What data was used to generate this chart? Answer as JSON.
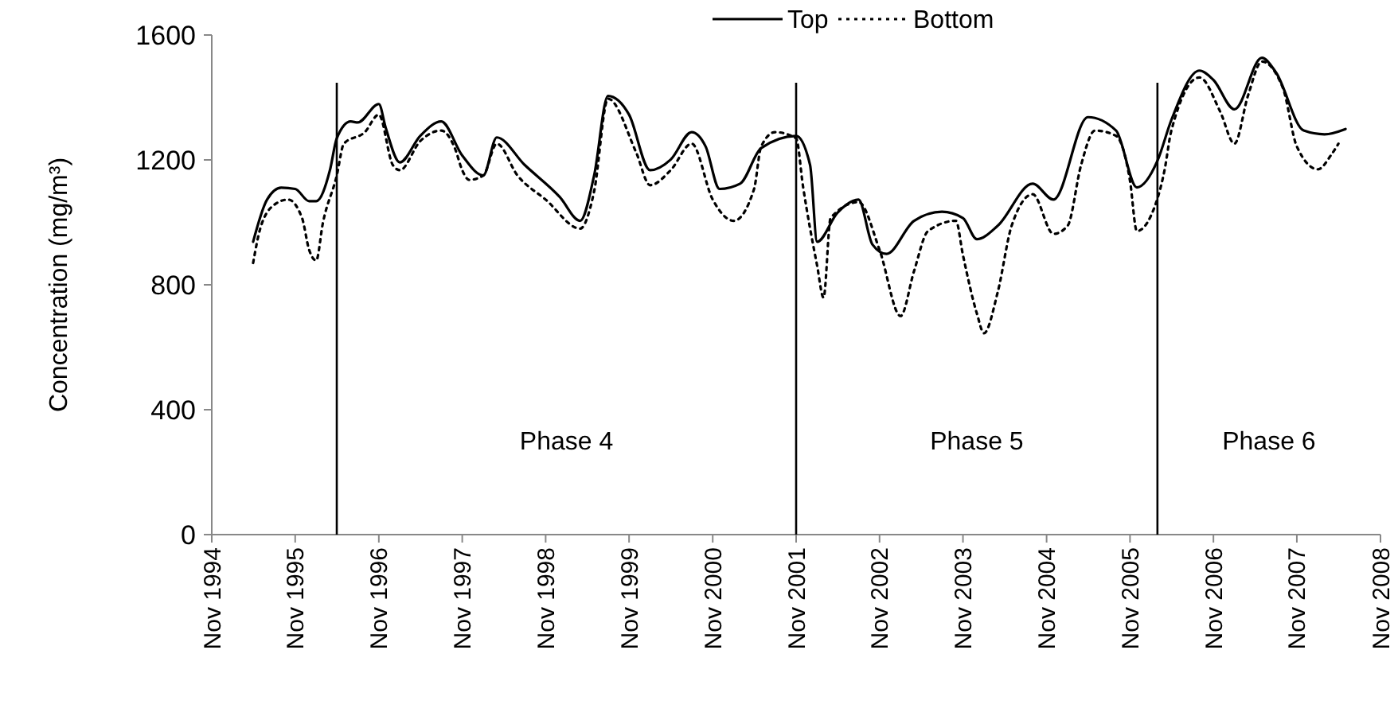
{
  "chart_data": {
    "type": "line",
    "ylabel": "Concentration (mg/m³)",
    "legend": "top",
    "xlim": [
      "1994-11",
      "2008-11"
    ],
    "xticks": [
      {
        "value": "1994-11",
        "label": "Nov 1994"
      },
      {
        "value": "1995-11",
        "label": "Nov 1995"
      },
      {
        "value": "1996-11",
        "label": "Nov 1996"
      },
      {
        "value": "1997-11",
        "label": "Nov 1997"
      },
      {
        "value": "1998-11",
        "label": "Nov 1998"
      },
      {
        "value": "1999-11",
        "label": "Nov 1999"
      },
      {
        "value": "2000-11",
        "label": "Nov 2000"
      },
      {
        "value": "2001-11",
        "label": "Nov 2001"
      },
      {
        "value": "2002-11",
        "label": "Nov 2002"
      },
      {
        "value": "2003-11",
        "label": "Nov 2003"
      },
      {
        "value": "2004-11",
        "label": "Nov 2004"
      },
      {
        "value": "2005-11",
        "label": "Nov 2005"
      },
      {
        "value": "2006-11",
        "label": "Nov 2006"
      },
      {
        "value": "2007-11",
        "label": "Nov 2007"
      },
      {
        "value": "2008-11",
        "label": "Nov 2008"
      }
    ],
    "ylim": [
      0,
      1600
    ],
    "yticks": [
      0,
      400,
      800,
      1200,
      1600
    ],
    "series": [
      {
        "name": "Top",
        "color": "#000000",
        "line_style": "solid",
        "x": [
          "1995-05",
          "1995-07",
          "1995-09",
          "1995-11",
          "1996-01",
          "1996-02",
          "1996-04",
          "1996-05",
          "1996-07",
          "1996-08",
          "1996-11",
          "1996-12",
          "1997-02",
          "1997-05",
          "1997-08",
          "1997-11",
          "1998-02",
          "1998-04",
          "1998-08",
          "1999-01",
          "1999-04",
          "1999-06",
          "1999-08",
          "1999-11",
          "2000-02",
          "2000-05",
          "2000-08",
          "2000-10",
          "2000-12",
          "2001-03",
          "2001-06",
          "2001-11",
          "2002-01",
          "2002-02",
          "2002-05",
          "2002-08",
          "2002-10",
          "2002-12",
          "2003-04",
          "2003-08",
          "2003-11",
          "2004-01",
          "2004-04",
          "2004-09",
          "2004-12",
          "2005-05",
          "2005-09",
          "2005-12",
          "2006-03",
          "2006-05",
          "2006-09",
          "2006-11",
          "2007-02",
          "2007-06",
          "2007-08",
          "2007-12",
          "2008-03",
          "2008-06"
        ],
        "values": [
          938,
          1073,
          1111,
          1107,
          1068,
          1068,
          1167,
          1269,
          1323,
          1320,
          1379,
          1303,
          1192,
          1277,
          1323,
          1214,
          1150,
          1272,
          1184,
          1082,
          1005,
          1150,
          1405,
          1345,
          1167,
          1201,
          1289,
          1243,
          1107,
          1124,
          1238,
          1277,
          1184,
          938,
          1031,
          1073,
          929,
          899,
          1005,
          1034,
          1014,
          946,
          989,
          1124,
          1073,
          1337,
          1294,
          1112,
          1197,
          1328,
          1486,
          1456,
          1362,
          1527,
          1481,
          1294,
          1282,
          1299
        ]
      },
      {
        "name": "Bottom",
        "color": "#000000",
        "line_style": "dotted",
        "x": [
          "1995-05",
          "1995-06",
          "1995-08",
          "1995-10",
          "1995-12",
          "1996-01",
          "1996-02",
          "1996-03",
          "1996-05",
          "1996-06",
          "1996-09",
          "1996-11",
          "1997-01",
          "1997-02",
          "1997-05",
          "1997-08",
          "1997-10",
          "1997-11",
          "1997-12",
          "1998-02",
          "1998-04",
          "1998-07",
          "1998-11",
          "1999-04",
          "1999-06",
          "1999-08",
          "1999-12",
          "2000-02",
          "2000-05",
          "2000-08",
          "2000-11",
          "2001-02",
          "2001-05",
          "2001-06",
          "2001-08",
          "2001-11",
          "2001-12",
          "2002-02",
          "2002-03",
          "2002-04",
          "2002-08",
          "2002-11",
          "2003-02",
          "2003-04",
          "2003-06",
          "2003-10",
          "2003-11",
          "2004-01",
          "2004-02",
          "2004-04",
          "2004-06",
          "2004-09",
          "2004-12",
          "2005-02",
          "2005-04",
          "2005-06",
          "2005-09",
          "2005-11",
          "2005-12",
          "2006-02",
          "2006-04",
          "2006-05",
          "2006-09",
          "2006-12",
          "2007-02",
          "2007-04",
          "2007-06",
          "2007-09",
          "2007-11",
          "2008-02",
          "2008-04",
          "2008-05"
        ],
        "values": [
          870,
          980,
          1056,
          1073,
          1014,
          912,
          878,
          997,
          1150,
          1252,
          1289,
          1345,
          1184,
          1167,
          1260,
          1294,
          1235,
          1167,
          1136,
          1150,
          1252,
          1150,
          1073,
          980,
          1099,
          1396,
          1226,
          1119,
          1167,
          1252,
          1073,
          1005,
          1107,
          1243,
          1289,
          1269,
          1116,
          861,
          759,
          1014,
          1065,
          912,
          700,
          844,
          972,
          1005,
          895,
          708,
          645,
          776,
          989,
          1090,
          963,
          989,
          1184,
          1294,
          1277,
          1133,
          972,
          1022,
          1167,
          1294,
          1464,
          1354,
          1252,
          1405,
          1515,
          1430,
          1243,
          1170,
          1218,
          1252
        ]
      }
    ],
    "ref_lines": [
      {
        "axis": "x",
        "value": "1996-05",
        "color": "#000000"
      },
      {
        "axis": "x",
        "value": "2001-11",
        "color": "#000000"
      },
      {
        "axis": "x",
        "value": "2006-03",
        "color": "#000000"
      }
    ],
    "annotations": [
      "Phase 4",
      "Phase 5",
      "Phase 6"
    ]
  }
}
